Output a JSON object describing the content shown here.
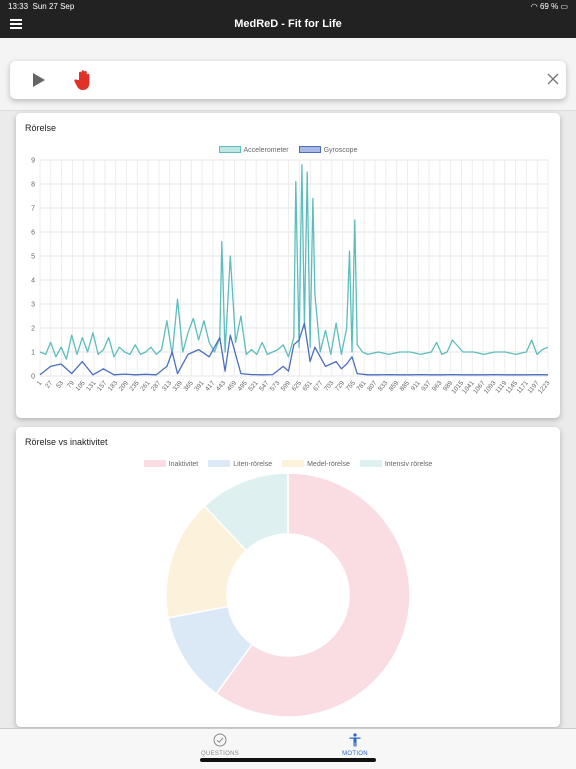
{
  "status": {
    "time": "13:33",
    "date": "Sun 27 Sep",
    "battery": "69 %"
  },
  "app": {
    "title": "MedReD - Fit for Life"
  },
  "controls": {
    "play_icon": "play-icon",
    "stop_icon": "stop-hand-icon",
    "close_icon": "close-icon"
  },
  "cards": {
    "motion_title": "Rörelse",
    "inactivity_title": "Rörelse vs inaktivitet"
  },
  "tabs": [
    {
      "label": "QUESTIONS",
      "icon": "check-circle-icon",
      "active": false
    },
    {
      "label": "MOTION",
      "icon": "person-icon",
      "active": true
    }
  ],
  "colors": {
    "accelerometer": "#5dbdbd",
    "gyroscope": "#4a6fc0",
    "active_tab": "#2a66c8"
  },
  "chart_data": [
    {
      "type": "line",
      "title": "Rörelse",
      "ylim": [
        0,
        9
      ],
      "y_ticks": [
        "0",
        "1",
        "2",
        "3",
        "4",
        "5",
        "6",
        "7",
        "8",
        "9"
      ],
      "x_tick_labels": [
        "1",
        "27",
        "53",
        "79",
        "105",
        "131",
        "157",
        "183",
        "209",
        "235",
        "261",
        "287",
        "313",
        "339",
        "365",
        "391",
        "417",
        "443",
        "469",
        "495",
        "521",
        "547",
        "573",
        "599",
        "625",
        "651",
        "677",
        "703",
        "729",
        "755",
        "781",
        "807",
        "833",
        "859",
        "885",
        "911",
        "937",
        "963",
        "989",
        "1015",
        "1041",
        "1067",
        "1093",
        "1119",
        "1145",
        "1171",
        "1197",
        "1223"
      ],
      "x_range": [
        1,
        1250
      ],
      "grid": true,
      "legend": "top-center",
      "series": [
        {
          "name": "Accelerometer",
          "x": [
            1,
            15,
            27,
            40,
            53,
            66,
            79,
            92,
            105,
            118,
            131,
            144,
            157,
            170,
            183,
            196,
            209,
            222,
            235,
            248,
            261,
            274,
            287,
            300,
            313,
            326,
            339,
            352,
            365,
            378,
            391,
            404,
            417,
            430,
            443,
            448,
            456,
            469,
            482,
            495,
            508,
            521,
            534,
            547,
            560,
            573,
            586,
            599,
            612,
            625,
            630,
            638,
            645,
            651,
            658,
            665,
            672,
            677,
            690,
            703,
            716,
            729,
            742,
            755,
            762,
            768,
            775,
            781,
            794,
            807,
            833,
            859,
            885,
            911,
            937,
            963,
            976,
            989,
            1002,
            1015,
            1041,
            1067,
            1093,
            1119,
            1145,
            1171,
            1197,
            1210,
            1223,
            1236,
            1250
          ],
          "values": [
            1.0,
            0.9,
            1.4,
            0.8,
            1.2,
            0.7,
            1.7,
            0.9,
            1.6,
            1.0,
            1.8,
            0.9,
            1.1,
            1.6,
            0.8,
            1.2,
            1.0,
            0.9,
            1.3,
            0.9,
            1.0,
            1.2,
            0.9,
            1.1,
            2.3,
            0.9,
            3.2,
            1.0,
            1.8,
            2.4,
            1.5,
            2.3,
            1.4,
            1.0,
            1.6,
            5.6,
            1.0,
            5.0,
            1.4,
            2.5,
            0.9,
            1.1,
            0.9,
            1.4,
            0.9,
            1.0,
            1.1,
            1.3,
            0.8,
            1.6,
            8.1,
            1.2,
            8.8,
            2.0,
            8.5,
            1.2,
            7.4,
            3.4,
            1.0,
            1.9,
            0.9,
            2.2,
            0.9,
            2.0,
            5.2,
            1.0,
            6.5,
            1.3,
            1.0,
            0.9,
            1.0,
            0.9,
            1.0,
            1.0,
            0.9,
            1.0,
            1.4,
            0.9,
            1.0,
            1.5,
            1.0,
            1.0,
            0.9,
            1.0,
            1.0,
            0.9,
            1.0,
            1.5,
            0.9,
            1.1,
            1.2
          ]
        },
        {
          "name": "Gyroscope",
          "x": [
            1,
            27,
            53,
            79,
            105,
            131,
            157,
            183,
            209,
            235,
            261,
            287,
            313,
            326,
            339,
            365,
            391,
            417,
            443,
            456,
            469,
            495,
            521,
            547,
            573,
            599,
            612,
            625,
            638,
            651,
            665,
            677,
            703,
            729,
            742,
            755,
            768,
            781,
            807,
            833,
            859,
            885,
            911,
            937,
            963,
            989,
            1015,
            1041,
            1067,
            1093,
            1119,
            1145,
            1171,
            1197,
            1223,
            1250
          ],
          "values": [
            0.05,
            0.4,
            0.5,
            0.1,
            0.6,
            0.05,
            0.3,
            0.05,
            0.08,
            0.05,
            0.07,
            0.05,
            0.4,
            1.0,
            0.1,
            0.9,
            1.1,
            0.8,
            1.6,
            0.2,
            1.7,
            0.1,
            0.06,
            0.05,
            0.06,
            0.4,
            0.2,
            1.3,
            1.5,
            2.2,
            0.6,
            1.2,
            0.4,
            0.6,
            0.3,
            0.5,
            0.8,
            0.1,
            0.05,
            0.05,
            0.06,
            0.05,
            0.05,
            0.06,
            0.05,
            0.05,
            0.06,
            0.05,
            0.05,
            0.05,
            0.06,
            0.05,
            0.05,
            0.05,
            0.06,
            0.05
          ]
        }
      ]
    },
    {
      "type": "pie",
      "title": "Rörelse vs inaktivitet",
      "legend": "top-center",
      "categories": [
        "Inaktivitet",
        "Liten-rörelse",
        "Medel-rörelse",
        "Intensiv rörelse"
      ],
      "values": [
        60,
        12,
        16,
        12
      ],
      "colors": [
        "#f9dde3",
        "#dbe9f7",
        "#fcf1da",
        "#dff0f0"
      ]
    }
  ]
}
